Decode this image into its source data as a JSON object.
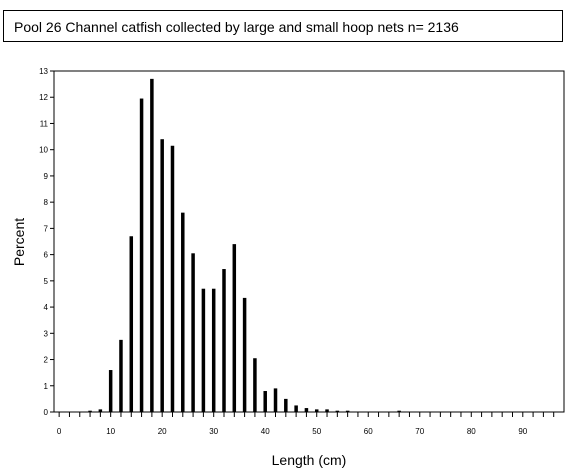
{
  "chart_data": {
    "type": "bar",
    "title": "Pool 26 Channel catfish collected by large and small hoop nets n= 2136",
    "xlabel": "Length (cm)",
    "ylabel": "Percent",
    "xlim": [
      -1,
      98
    ],
    "ylim": [
      0,
      13
    ],
    "x_ticks": [
      0,
      10,
      20,
      30,
      40,
      50,
      60,
      70,
      80,
      90
    ],
    "y_ticks": [
      0,
      1,
      2,
      3,
      4,
      5,
      6,
      7,
      8,
      9,
      10,
      11,
      12,
      13
    ],
    "grid": false,
    "x": [
      6,
      8,
      10,
      12,
      14,
      16,
      18,
      20,
      22,
      24,
      26,
      28,
      30,
      32,
      34,
      36,
      38,
      40,
      42,
      44,
      46,
      48,
      50,
      52,
      54,
      56,
      66
    ],
    "values": [
      0.05,
      0.1,
      1.6,
      2.75,
      6.7,
      11.95,
      12.7,
      10.4,
      10.15,
      7.6,
      6.05,
      4.7,
      4.7,
      5.45,
      6.4,
      4.35,
      2.05,
      0.8,
      0.9,
      0.5,
      0.25,
      0.15,
      0.1,
      0.1,
      0.05,
      0.05,
      0.05
    ],
    "bar_color": "#000000"
  }
}
